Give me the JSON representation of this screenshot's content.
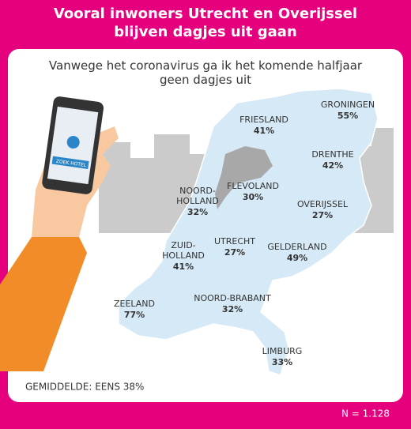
{
  "header": {
    "title": "Vooral inwoners Utrecht en Overijssel blijven dagjes uit gaan",
    "subtitle": "Vanwege het coronavirus ga ik het komende halfjaar geen dagjes uit"
  },
  "phone_button": "ZOEK HOTEL",
  "provinces": [
    {
      "name": [
        "GRONINGEN"
      ],
      "value": "55%"
    },
    {
      "name": [
        "FRIESLAND"
      ],
      "value": "41%"
    },
    {
      "name": [
        "DRENTHE"
      ],
      "value": "42%"
    },
    {
      "name": [
        "NOORD-",
        "HOLLAND"
      ],
      "value": "32%"
    },
    {
      "name": [
        "FLEVOLAND"
      ],
      "value": "30%"
    },
    {
      "name": [
        "OVERIJSSEL"
      ],
      "value": "27%"
    },
    {
      "name": [
        "ZUID-",
        "HOLLAND"
      ],
      "value": "41%"
    },
    {
      "name": [
        "UTRECHT"
      ],
      "value": "27%"
    },
    {
      "name": [
        "GELDERLAND"
      ],
      "value": "49%"
    },
    {
      "name": [
        "ZEELAND"
      ],
      "value": "77%"
    },
    {
      "name": [
        "NOORD-BRABANT"
      ],
      "value": "32%"
    },
    {
      "name": [
        "LIMBURG"
      ],
      "value": "33%"
    }
  ],
  "average": "GEMIDDELDE: EENS 38%",
  "sample": "N = 1.128"
}
